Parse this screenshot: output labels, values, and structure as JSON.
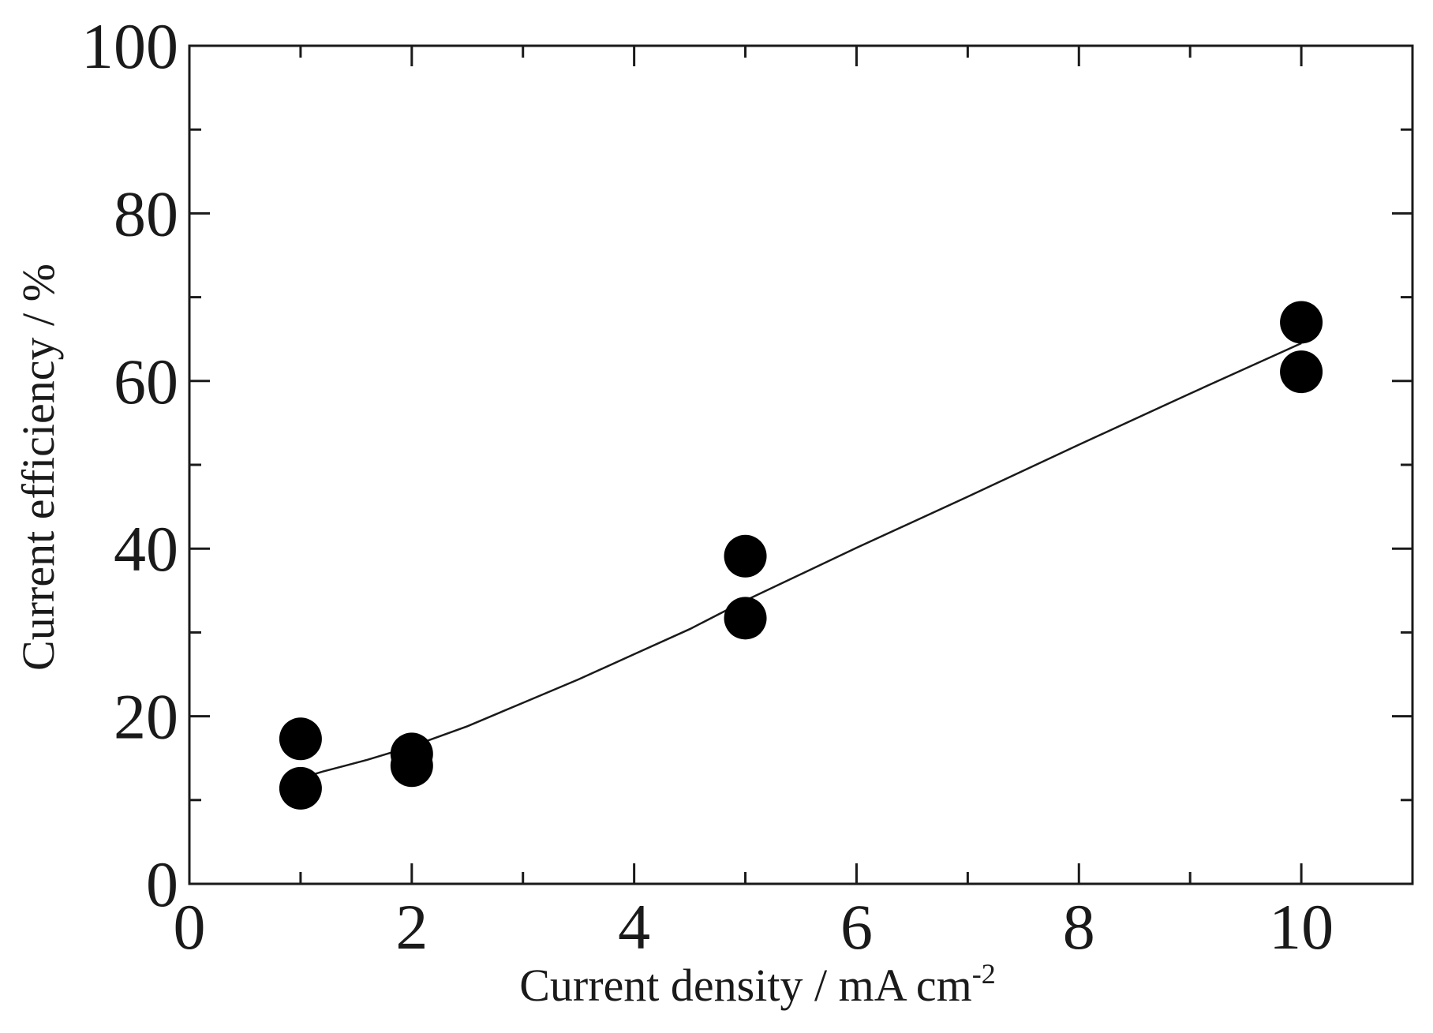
{
  "chart_data": {
    "type": "scatter",
    "title": "",
    "xlabel": "Current density / mA cm",
    "xlabel_superscript": "-2",
    "ylabel": "Current efficiency / %",
    "xlim": [
      0,
      11
    ],
    "ylim": [
      0,
      100
    ],
    "x_ticks": [
      0,
      2,
      4,
      6,
      8,
      10
    ],
    "x_tick_labels": [
      "0",
      "2",
      "4",
      "6",
      "8",
      "10"
    ],
    "x_minor_ticks": [
      1,
      3,
      5,
      7,
      9,
      11
    ],
    "y_ticks": [
      0,
      20,
      40,
      60,
      80,
      100
    ],
    "y_tick_labels": [
      "0",
      "20",
      "40",
      "60",
      "80",
      "100"
    ],
    "y_minor_ticks": [
      10,
      30,
      50,
      70,
      90
    ],
    "grid": false,
    "legend": "none",
    "marker_color": "#000000",
    "points": [
      {
        "x": 1,
        "y": 17.3
      },
      {
        "x": 1,
        "y": 11.4
      },
      {
        "x": 2,
        "y": 15.5
      },
      {
        "x": 2,
        "y": 14.1
      },
      {
        "x": 5,
        "y": 39.1
      },
      {
        "x": 5,
        "y": 31.7
      },
      {
        "x": 10,
        "y": 67.0
      },
      {
        "x": 10,
        "y": 61.1
      }
    ],
    "fit_curve": {
      "style": "line",
      "color": "#1a1a1a",
      "points": [
        {
          "x": 1.0,
          "y": 12.6
        },
        {
          "x": 1.2,
          "y": 13.4
        },
        {
          "x": 1.4,
          "y": 14.1
        },
        {
          "x": 1.6,
          "y": 14.8
        },
        {
          "x": 1.8,
          "y": 15.6
        },
        {
          "x": 2.0,
          "y": 16.4
        },
        {
          "x": 2.5,
          "y": 18.8
        },
        {
          "x": 3.0,
          "y": 21.6
        },
        {
          "x": 3.5,
          "y": 24.4
        },
        {
          "x": 4.0,
          "y": 27.4
        },
        {
          "x": 4.5,
          "y": 30.4
        },
        {
          "x": 5.0,
          "y": 33.8
        },
        {
          "x": 6.0,
          "y": 40.1
        },
        {
          "x": 7.0,
          "y": 46.2
        },
        {
          "x": 8.0,
          "y": 52.4
        },
        {
          "x": 9.0,
          "y": 58.5
        },
        {
          "x": 10.0,
          "y": 64.5
        }
      ]
    }
  }
}
